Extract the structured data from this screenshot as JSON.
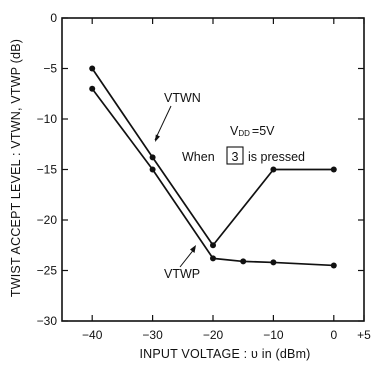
{
  "chart_data": {
    "type": "line",
    "xlabel": "INPUT VOLTAGE : υ in (dBm)",
    "ylabel": "TWIST ACCEPT LEVEL : VTWN, VTWP (dB)",
    "xlim": [
      -45,
      5
    ],
    "ylim": [
      -30,
      0
    ],
    "xticks": [
      -40,
      -30,
      -20,
      -10,
      0,
      5
    ],
    "xtick_labels": [
      "−40",
      "−30",
      "−20",
      "−10",
      "0",
      "+5"
    ],
    "yticks": [
      0,
      -5,
      -10,
      -15,
      -20,
      -25,
      -30
    ],
    "ytick_labels": [
      "0",
      "−5",
      "−10",
      "−15",
      "−20",
      "−25",
      "−30"
    ],
    "grid": false,
    "series": [
      {
        "name": "VTWN",
        "x": [
          -40,
          -30,
          -20,
          -10,
          0
        ],
        "y": [
          -5,
          -13.8,
          -22.5,
          -15,
          -15
        ]
      },
      {
        "name": "VTWP",
        "x": [
          -40,
          -30,
          -20,
          -15,
          -10,
          0
        ],
        "y": [
          -7,
          -15,
          -23.8,
          -24.1,
          -24.2,
          -24.5
        ]
      }
    ],
    "annotations": {
      "vdd_prefix": "V",
      "vdd_subscript": "DD",
      "vdd_suffix": "=5V",
      "when_text": "When",
      "key_label": "3",
      "pressed_text": "is pressed"
    },
    "line_color": "#111111"
  }
}
